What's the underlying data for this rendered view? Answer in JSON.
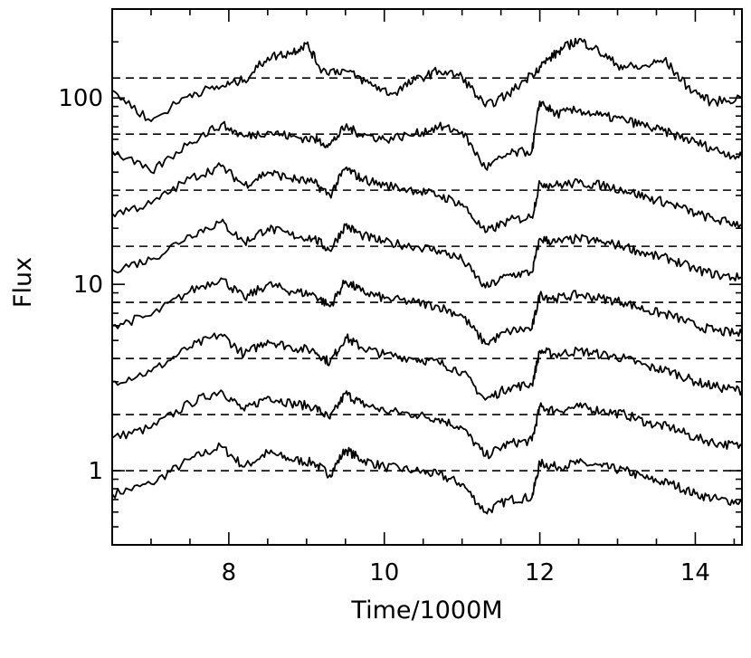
{
  "chart_data": {
    "type": "line",
    "title": "",
    "xlabel": "Time/1000M",
    "ylabel": "Flux",
    "xlim": [
      6.5,
      14.6
    ],
    "ylim": [
      0.4,
      300
    ],
    "yscale": "log",
    "x_ticks": [
      8,
      10,
      12,
      14
    ],
    "x_tick_labels": [
      "8",
      "10",
      "12",
      "14"
    ],
    "y_ticks": [
      1,
      10,
      100
    ],
    "y_tick_labels": [
      "1",
      "10",
      "100"
    ],
    "grid": false,
    "legend": "none",
    "reference_lines": [
      1,
      2,
      4,
      8,
      16,
      32,
      64,
      128
    ],
    "line_color": "#000000",
    "series": [
      {
        "x": [
          6.5,
          7.0,
          7.5,
          7.9,
          8.2,
          8.5,
          8.8,
          9.1,
          9.3,
          9.5,
          9.7,
          10.0,
          10.4,
          10.7,
          11.0,
          11.3,
          11.6,
          11.9,
          12.0,
          12.2,
          12.5,
          12.8,
          13.1,
          13.4,
          13.7,
          14.0,
          14.3,
          14.6
        ],
        "y": [
          0.75,
          0.85,
          1.15,
          1.35,
          1.05,
          1.25,
          1.15,
          1.1,
          0.95,
          1.3,
          1.15,
          1.05,
          1.0,
          0.95,
          0.85,
          0.6,
          0.7,
          0.72,
          1.1,
          1.05,
          1.1,
          1.05,
          1.0,
          0.9,
          0.85,
          0.75,
          0.7,
          0.68
        ]
      },
      {
        "x": [
          6.5,
          7.0,
          7.5,
          7.9,
          8.2,
          8.5,
          8.8,
          9.1,
          9.3,
          9.5,
          9.7,
          10.0,
          10.4,
          10.7,
          11.0,
          11.3,
          11.6,
          11.9,
          12.0,
          12.2,
          12.5,
          12.8,
          13.1,
          13.4,
          13.7,
          14.0,
          14.3,
          14.6
        ],
        "y": [
          1.5,
          1.7,
          2.3,
          2.7,
          2.1,
          2.5,
          2.3,
          2.2,
          1.9,
          2.6,
          2.3,
          2.1,
          2.0,
          1.9,
          1.7,
          1.2,
          1.4,
          1.45,
          2.2,
          2.1,
          2.2,
          2.1,
          2.0,
          1.8,
          1.7,
          1.5,
          1.4,
          1.35
        ]
      },
      {
        "x": [
          6.5,
          7.0,
          7.5,
          7.9,
          8.2,
          8.5,
          8.8,
          9.1,
          9.3,
          9.5,
          9.7,
          10.0,
          10.4,
          10.7,
          11.0,
          11.3,
          11.6,
          11.9,
          12.0,
          12.2,
          12.5,
          12.8,
          13.1,
          13.4,
          13.7,
          14.0,
          14.3,
          14.6
        ],
        "y": [
          3.0,
          3.4,
          4.6,
          5.4,
          4.2,
          5.0,
          4.6,
          4.4,
          3.8,
          5.2,
          4.6,
          4.2,
          4.0,
          3.8,
          3.4,
          2.4,
          2.8,
          2.9,
          4.4,
          4.2,
          4.4,
          4.2,
          4.0,
          3.6,
          3.4,
          3.0,
          2.8,
          2.7
        ]
      },
      {
        "x": [
          6.5,
          7.0,
          7.5,
          7.9,
          8.2,
          8.5,
          8.8,
          9.1,
          9.3,
          9.5,
          9.7,
          10.0,
          10.4,
          10.7,
          11.0,
          11.3,
          11.6,
          11.9,
          12.0,
          12.2,
          12.5,
          12.8,
          13.1,
          13.4,
          13.7,
          14.0,
          14.3,
          14.6
        ],
        "y": [
          6.0,
          6.8,
          9.2,
          10.8,
          8.4,
          10.0,
          9.2,
          8.8,
          7.6,
          10.4,
          9.2,
          8.4,
          8.0,
          7.6,
          6.8,
          4.8,
          5.6,
          5.8,
          8.8,
          8.4,
          8.8,
          8.4,
          8.0,
          7.2,
          6.8,
          6.0,
          5.6,
          5.4
        ]
      },
      {
        "x": [
          6.5,
          7.0,
          7.5,
          7.9,
          8.2,
          8.5,
          8.8,
          9.1,
          9.3,
          9.5,
          9.7,
          10.0,
          10.4,
          10.7,
          11.0,
          11.3,
          11.6,
          11.9,
          12.0,
          12.2,
          12.5,
          12.8,
          13.1,
          13.4,
          13.7,
          14.0,
          14.3,
          14.6
        ],
        "y": [
          12,
          13.6,
          18.4,
          21.6,
          16.8,
          20,
          18.4,
          17.6,
          15.2,
          20.8,
          18.4,
          16.8,
          16,
          15.2,
          13.6,
          9.6,
          11.2,
          11.6,
          17.6,
          16.8,
          17.6,
          16.8,
          16,
          14.4,
          13.6,
          12,
          11.2,
          10.8
        ]
      },
      {
        "x": [
          6.5,
          7.0,
          7.5,
          7.9,
          8.2,
          8.5,
          8.8,
          9.1,
          9.3,
          9.5,
          9.7,
          10.0,
          10.4,
          10.7,
          11.0,
          11.3,
          11.6,
          11.9,
          12.0,
          12.2,
          12.5,
          12.8,
          13.1,
          13.4,
          13.7,
          14.0,
          14.3,
          14.6
        ],
        "y": [
          24,
          27,
          37,
          43,
          34,
          40,
          37,
          35,
          30,
          42,
          37,
          34,
          32,
          30,
          27,
          19,
          22,
          23,
          35,
          34,
          35,
          34,
          32,
          29,
          27,
          24,
          22,
          21
        ]
      },
      {
        "x": [
          6.5,
          7.0,
          7.5,
          7.9,
          8.2,
          8.5,
          8.8,
          9.1,
          9.3,
          9.5,
          9.7,
          10.0,
          10.4,
          10.7,
          11.0,
          11.3,
          11.6,
          11.9,
          12.0,
          12.2,
          12.5,
          12.8,
          13.1,
          13.4,
          13.7,
          14.0,
          14.3,
          14.6
        ],
        "y": [
          52,
          40,
          58,
          72,
          62,
          66,
          62,
          60,
          56,
          70,
          64,
          60,
          64,
          70,
          66,
          42,
          50,
          52,
          96,
          82,
          86,
          80,
          76,
          70,
          64,
          58,
          52,
          48
        ]
      },
      {
        "x": [
          6.5,
          7.0,
          7.5,
          7.9,
          8.2,
          8.5,
          8.8,
          9.0,
          9.2,
          9.5,
          9.8,
          10.1,
          10.4,
          10.7,
          11.0,
          11.3,
          11.6,
          11.9,
          12.1,
          12.3,
          12.5,
          12.7,
          13.0,
          13.3,
          13.6,
          13.9,
          14.2,
          14.6
        ],
        "y": [
          110,
          75,
          105,
          115,
          125,
          165,
          175,
          195,
          140,
          140,
          120,
          105,
          125,
          140,
          130,
          90,
          105,
          135,
          160,
          185,
          205,
          185,
          150,
          145,
          160,
          115,
          95,
          100
        ]
      }
    ]
  }
}
